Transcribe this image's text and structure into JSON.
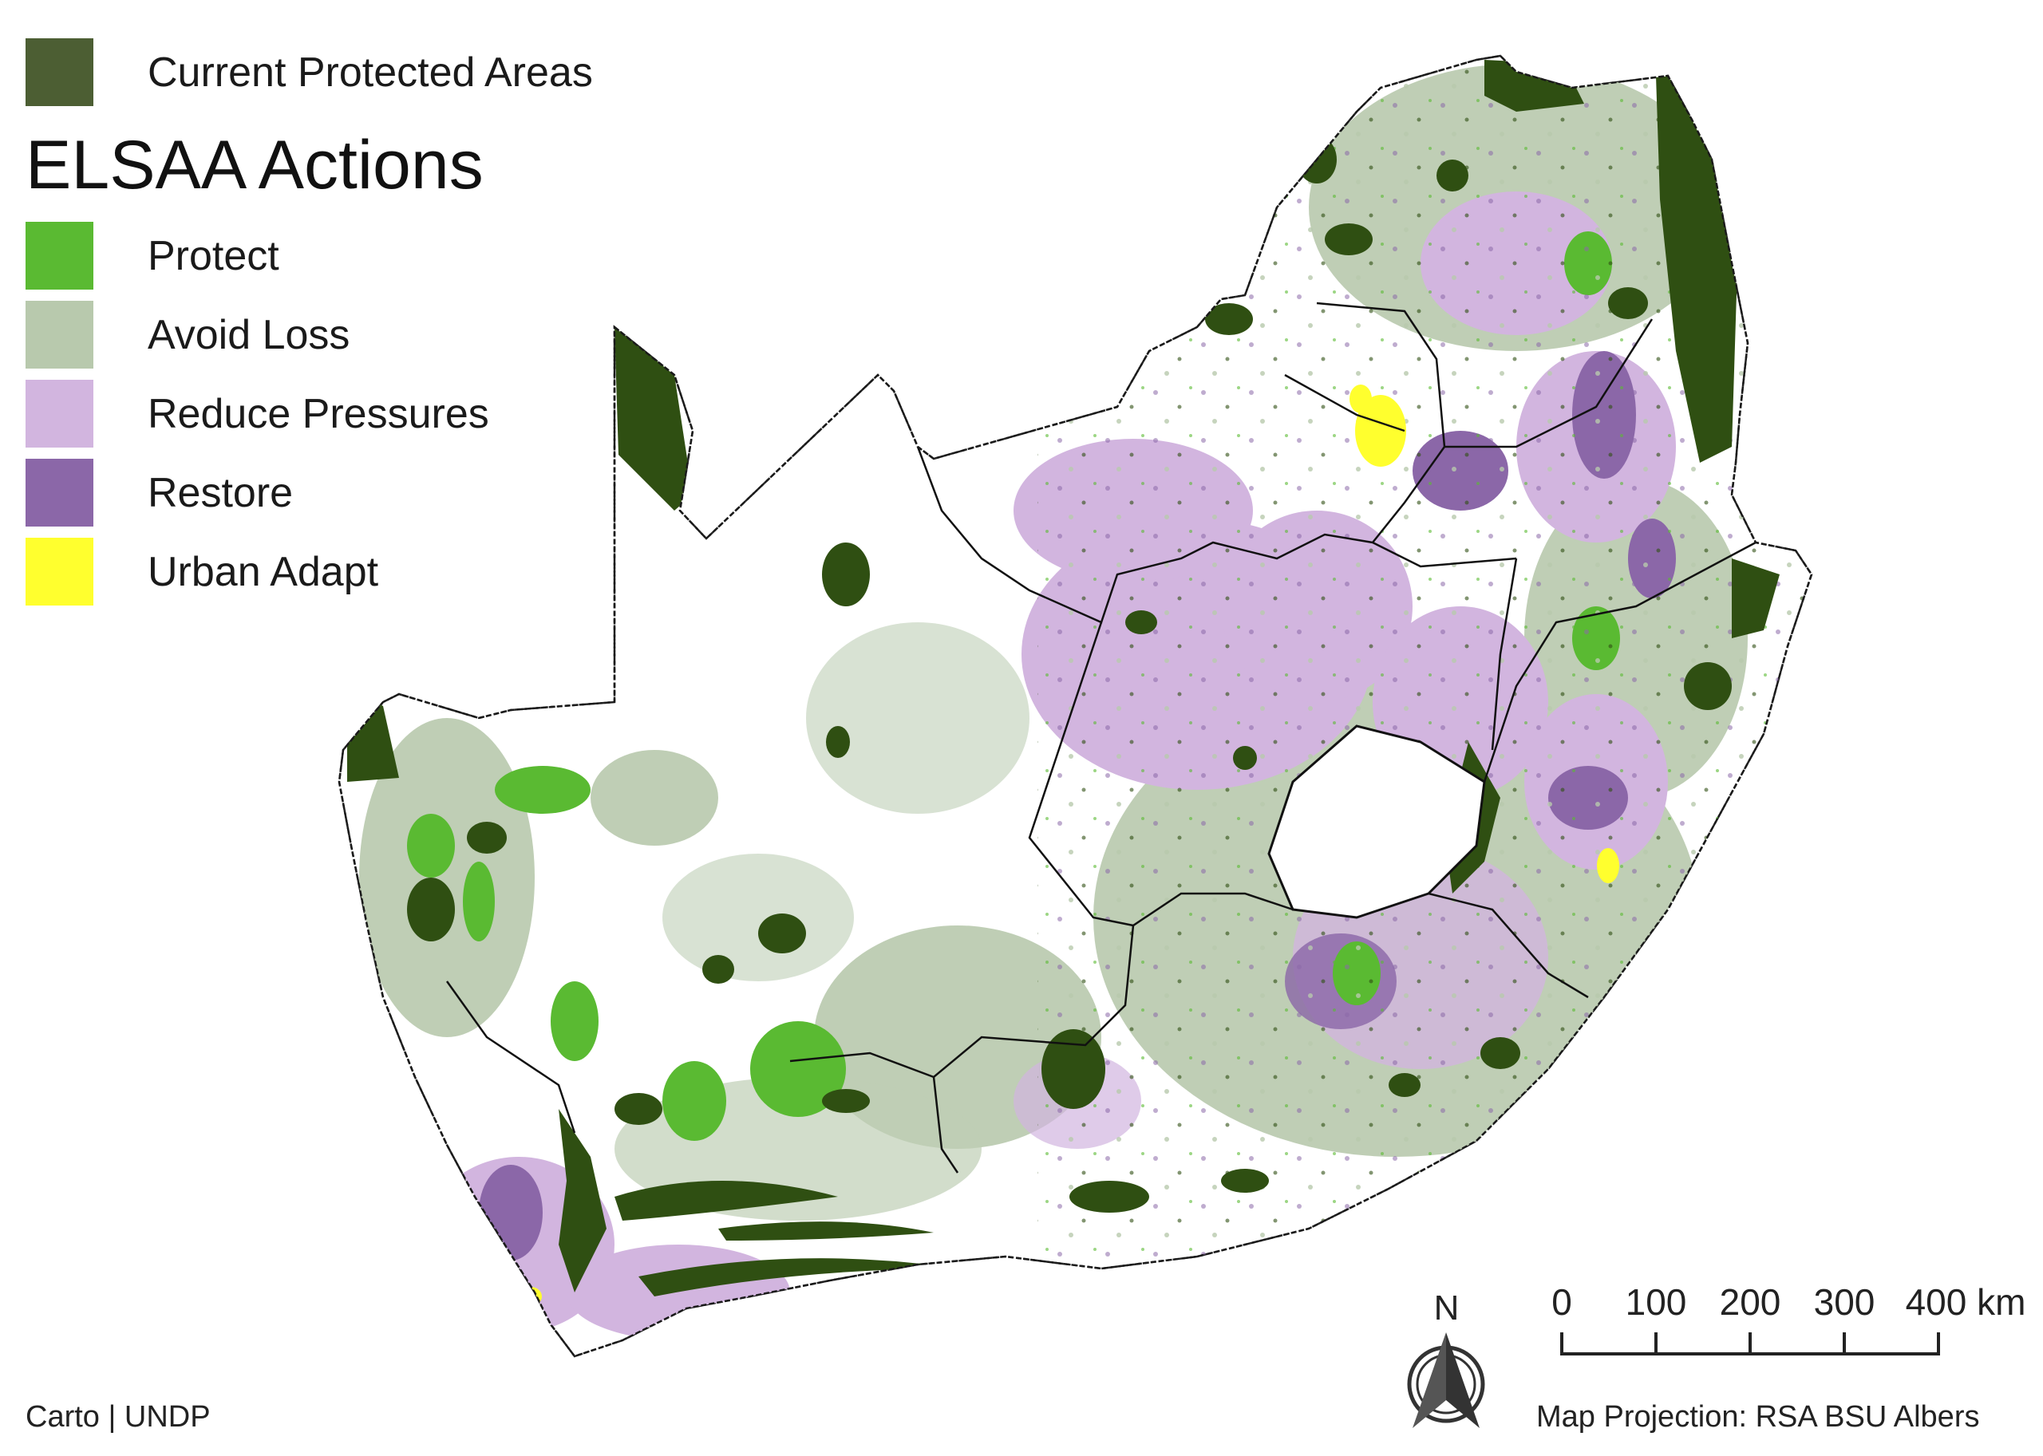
{
  "legend": {
    "protected_areas": {
      "label": "Current Protected Areas",
      "color": "#4c5e33"
    },
    "title": "ELSAA Actions",
    "items": [
      {
        "label": "Protect",
        "color": "#5aba32"
      },
      {
        "label": "Avoid Loss",
        "color": "#b8c9ad"
      },
      {
        "label": "Reduce Pressures",
        "color": "#d2b5df"
      },
      {
        "label": "Restore",
        "color": "#8b67a8"
      },
      {
        "label": "Urban Adapt",
        "color": "#ffff2e"
      }
    ]
  },
  "map": {
    "subject": "South Africa ELSAA action map",
    "colors": {
      "protected_areas": "#2f4f12",
      "protect": "#5aba32",
      "avoid_loss": "#b8c9ad",
      "reduce_pressures": "#d2b5df",
      "restore": "#8b67a8",
      "urban_adapt": "#ffff2e",
      "background": "#ffffff",
      "borders": "#111111"
    }
  },
  "north_arrow": {
    "letter": "N"
  },
  "scale_bar": {
    "labels": [
      "0",
      "100",
      "200",
      "300",
      "400 km"
    ]
  },
  "credits": "Carto | UNDP",
  "projection": "Map Projection: RSA BSU Albers"
}
